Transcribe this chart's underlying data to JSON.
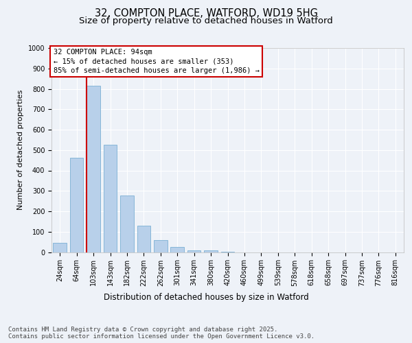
{
  "title_line1": "32, COMPTON PLACE, WATFORD, WD19 5HG",
  "title_line2": "Size of property relative to detached houses in Watford",
  "xlabel": "Distribution of detached houses by size in Watford",
  "ylabel": "Number of detached properties",
  "categories": [
    "24sqm",
    "64sqm",
    "103sqm",
    "143sqm",
    "182sqm",
    "222sqm",
    "262sqm",
    "301sqm",
    "341sqm",
    "380sqm",
    "420sqm",
    "460sqm",
    "499sqm",
    "539sqm",
    "578sqm",
    "618sqm",
    "658sqm",
    "697sqm",
    "737sqm",
    "776sqm",
    "816sqm"
  ],
  "values": [
    47,
    462,
    815,
    525,
    278,
    128,
    60,
    25,
    10,
    10,
    3,
    0,
    0,
    0,
    0,
    0,
    0,
    0,
    0,
    0,
    0
  ],
  "bar_color": "#b8d0ea",
  "bar_edge_color": "#7aafd4",
  "vline_color": "#cc0000",
  "annotation_box_text": "32 COMPTON PLACE: 94sqm\n← 15% of detached houses are smaller (353)\n85% of semi-detached houses are larger (1,986) →",
  "annotation_box_color": "#cc0000",
  "ylim": [
    0,
    1000
  ],
  "yticks": [
    0,
    100,
    200,
    300,
    400,
    500,
    600,
    700,
    800,
    900,
    1000
  ],
  "footer_text": "Contains HM Land Registry data © Crown copyright and database right 2025.\nContains public sector information licensed under the Open Government Licence v3.0.",
  "background_color": "#eef2f8",
  "plot_bg_color": "#eef2f8",
  "grid_color": "#ffffff",
  "title_fontsize": 10.5,
  "subtitle_fontsize": 9.5,
  "ylabel_fontsize": 8,
  "xlabel_fontsize": 8.5,
  "tick_fontsize": 7,
  "annot_fontsize": 7.5,
  "footer_fontsize": 6.5
}
